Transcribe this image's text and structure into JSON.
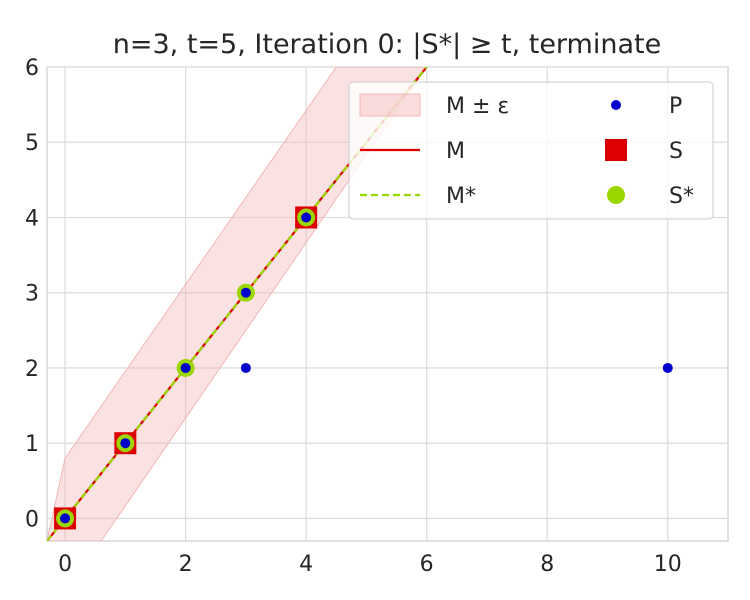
{
  "chart_data": {
    "type": "scatter",
    "title": "n=3, t=5, Iteration 0: |S*| ≥ t, terminate",
    "xlabel": "",
    "ylabel": "",
    "xlim": [
      -0.3,
      11
    ],
    "ylim": [
      -0.3,
      6
    ],
    "xticks": [
      0,
      2,
      4,
      6,
      8,
      10
    ],
    "yticks": [
      0,
      1,
      2,
      3,
      4,
      5,
      6
    ],
    "grid": true,
    "legend_placement": "top-right",
    "legend_columns": 2,
    "band": {
      "name": "M ± ε",
      "color": "#f4b6b6",
      "polygon": [
        [
          -0.3,
          -0.3
        ],
        [
          0,
          0.8
        ],
        [
          4.5,
          6
        ],
        [
          6,
          6
        ],
        [
          0.6,
          -0.3
        ]
      ]
    },
    "lines": [
      {
        "name": "M",
        "color": "#e00000",
        "style": "solid",
        "x": [
          -0.3,
          6
        ],
        "y": [
          -0.3,
          6
        ]
      },
      {
        "name": "M*",
        "color": "#9ad600",
        "style": "dashed",
        "x": [
          -0.3,
          6
        ],
        "y": [
          -0.3,
          6
        ]
      }
    ],
    "series": [
      {
        "name": "S",
        "marker": "square",
        "color": "#dd0000",
        "x": [
          0,
          1,
          4
        ],
        "y": [
          0,
          1,
          4
        ]
      },
      {
        "name": "S*",
        "marker": "circle",
        "color": "#9ad600",
        "x": [
          0,
          1,
          2,
          3,
          4
        ],
        "y": [
          0,
          1,
          2,
          3,
          4
        ]
      },
      {
        "name": "P",
        "marker": "dot",
        "color": "#0000cc",
        "x": [
          0,
          1,
          2,
          3,
          3,
          4,
          10
        ],
        "y": [
          0,
          1,
          2,
          3,
          2,
          4,
          2
        ]
      }
    ],
    "legend": [
      {
        "label": "M ± ε",
        "kind": "band"
      },
      {
        "label": "P",
        "kind": "P"
      },
      {
        "label": "M",
        "kind": "M"
      },
      {
        "label": "S",
        "kind": "S"
      },
      {
        "label": "M*",
        "kind": "Mstar"
      },
      {
        "label": "S*",
        "kind": "Sstar"
      }
    ]
  }
}
